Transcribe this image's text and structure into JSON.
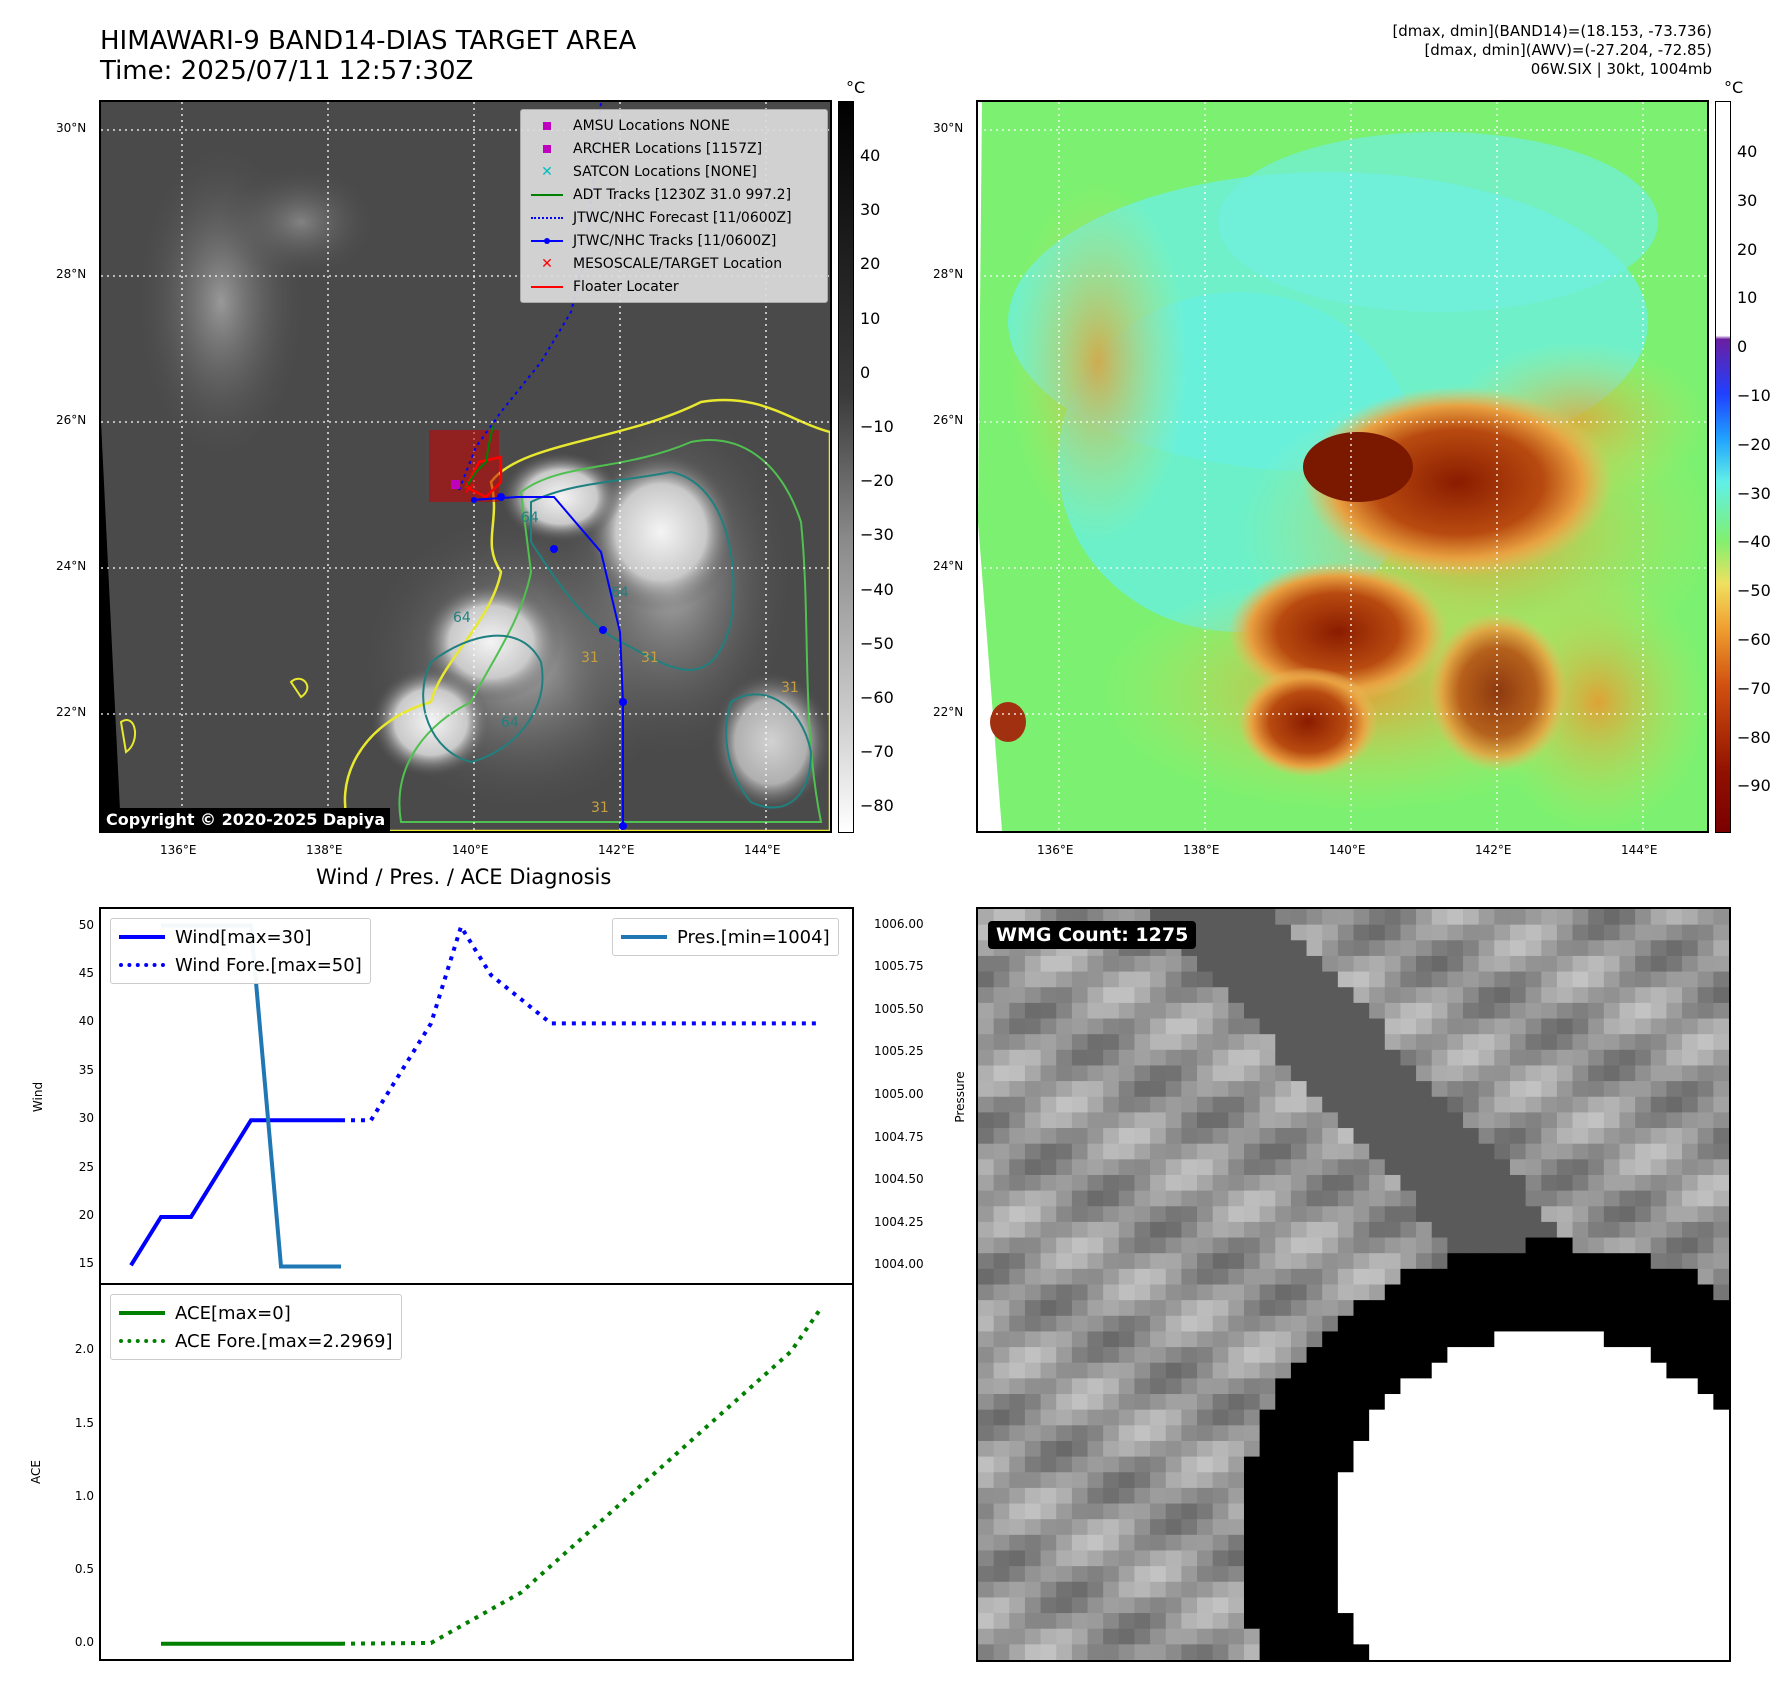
{
  "header": {
    "title_line1": "HIMAWARI-9 BAND14-DIAS TARGET AREA",
    "title_line2": "Time: 2025/07/11 12:57:30Z",
    "info_line1": "[dmax, dmin](BAND14)=(18.153, -73.736)",
    "info_line2": "[dmax, dmin](AWV)=(-27.204, -72.85)",
    "info_line3": "06W.SIX | 30kt, 1004mb"
  },
  "colors": {
    "wind": "#0000ff",
    "pressure": "#1f77b4",
    "ace": "#008000",
    "amsu": "#bf00bf",
    "archer": "#bf00bf",
    "satcon": "#00bfbf",
    "adt": "#008000",
    "jtwc_forecast": "#0000ff",
    "jtwc_track": "#0000ff",
    "target": "#ff0000",
    "floater": "#ff0000"
  },
  "map": {
    "lat_labels": [
      "30°N",
      "28°N",
      "26°N",
      "24°N",
      "22°N"
    ],
    "lon_labels": [
      "136°E",
      "138°E",
      "140°E",
      "142°E",
      "144°E"
    ],
    "copyright": "Copyright © 2020-2025 Dapiya",
    "contour_labels": [
      "64",
      "64",
      "64",
      "64",
      "31",
      "31",
      "31",
      "31"
    ],
    "legend": [
      {
        "label": "AMSU Locations NONE",
        "icon": "square-marker"
      },
      {
        "label": "ARCHER Locations [1157Z]",
        "icon": "square-marker"
      },
      {
        "label": "SATCON Locations [NONE]",
        "icon": "x-marker"
      },
      {
        "label": "ADT Tracks [1230Z 31.0 997.2]",
        "icon": "solid-line"
      },
      {
        "label": "JTWC/NHC Forecast [11/0600Z]",
        "icon": "dotted-line"
      },
      {
        "label": "JTWC/NHC Tracks [11/0600Z]",
        "icon": "line-with-dots"
      },
      {
        "label": "MESOSCALE/TARGET Location",
        "icon": "x-marker"
      },
      {
        "label": "Floater Locater",
        "icon": "solid-line"
      }
    ],
    "gray_colorbar": {
      "unit": "°C",
      "ticks": [
        "40",
        "30",
        "20",
        "10",
        "0",
        "−10",
        "−20",
        "−30",
        "−40",
        "−50",
        "−60",
        "−70",
        "−80"
      ]
    },
    "color_colorbar": {
      "unit": "°C",
      "ticks": [
        "40",
        "30",
        "20",
        "10",
        "0",
        "−10",
        "−20",
        "−30",
        "−40",
        "−50",
        "−60",
        "−70",
        "−80",
        "−90"
      ]
    }
  },
  "diagnosis": {
    "title": "Wind / Pres. / ACE Diagnosis",
    "wind_ylabel": "Wind",
    "pressure_ylabel": "Pressure",
    "ace_ylabel": "ACE",
    "legend_wind": "Wind[max=30]",
    "legend_wind_fore": "Wind Fore.[max=50]",
    "legend_pres": "Pres.[min=1004]",
    "legend_ace": "ACE[max=0]",
    "legend_ace_fore": "ACE Fore.[max=2.2969]"
  },
  "wmg": {
    "label": "WMG Count: 1275"
  },
  "chart_data": [
    {
      "type": "line",
      "title": "Wind / Pres. / ACE Diagnosis",
      "ylabel": "Wind",
      "ylim": [
        14,
        51
      ],
      "yticks": [
        15,
        20,
        25,
        30,
        35,
        40,
        45,
        50
      ],
      "series": [
        {
          "name": "Wind[max=30]",
          "style": "solid",
          "x": [
            0,
            1,
            2,
            3,
            4,
            5,
            6,
            7
          ],
          "values": [
            15,
            20,
            20,
            25,
            30,
            30,
            30,
            30
          ]
        },
        {
          "name": "Wind Fore.[max=50]",
          "style": "dotted",
          "x": [
            7,
            8,
            9,
            10,
            11,
            12,
            13,
            14,
            15,
            16,
            17,
            18,
            19,
            20,
            21,
            22,
            23
          ],
          "values": [
            30,
            30,
            35,
            40,
            50,
            45,
            42.5,
            40,
            40,
            40,
            40,
            40,
            40,
            40,
            40,
            40,
            40
          ]
        }
      ]
    },
    {
      "type": "line",
      "ylabel": "Pressure",
      "ylim": [
        1003.95,
        1006.05
      ],
      "yticks": [
        "1004.00",
        "1004.25",
        "1004.50",
        "1004.75",
        "1005.00",
        "1005.25",
        "1005.50",
        "1005.75",
        "1006.00"
      ],
      "series": [
        {
          "name": "Pres.[min=1004]",
          "x": [
            1,
            4,
            5,
            7
          ],
          "values": [
            1006,
            1006,
            1004,
            1004
          ]
        }
      ]
    },
    {
      "type": "line",
      "ylabel": "ACE",
      "ylim": [
        -0.05,
        2.4
      ],
      "yticks": [
        "0.0",
        "0.5",
        "1.0",
        "1.5",
        "2.0"
      ],
      "series": [
        {
          "name": "ACE[max=0]",
          "style": "solid",
          "x": [
            1,
            7
          ],
          "values": [
            0,
            0
          ]
        },
        {
          "name": "ACE Fore.[max=2.2969]",
          "style": "dotted",
          "x": [
            7,
            10,
            13,
            16,
            19,
            22,
            23
          ],
          "values": [
            0,
            0.005,
            0.35,
            0.9,
            1.45,
            2.0,
            2.2969
          ]
        }
      ]
    }
  ]
}
